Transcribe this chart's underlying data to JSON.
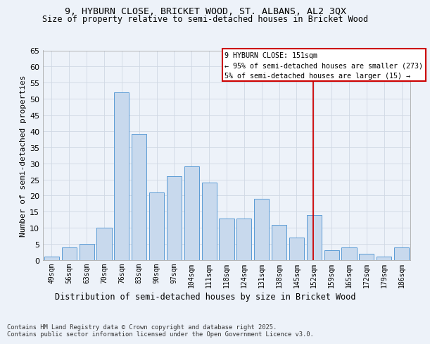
{
  "title_line1": "9, HYBURN CLOSE, BRICKET WOOD, ST. ALBANS, AL2 3QX",
  "title_line2": "Size of property relative to semi-detached houses in Bricket Wood",
  "xlabel": "Distribution of semi-detached houses by size in Bricket Wood",
  "ylabel": "Number of semi-detached properties",
  "categories": [
    "49sqm",
    "56sqm",
    "63sqm",
    "70sqm",
    "76sqm",
    "83sqm",
    "90sqm",
    "97sqm",
    "104sqm",
    "111sqm",
    "118sqm",
    "124sqm",
    "131sqm",
    "138sqm",
    "145sqm",
    "152sqm",
    "159sqm",
    "165sqm",
    "172sqm",
    "179sqm",
    "186sqm"
  ],
  "values": [
    1,
    4,
    5,
    10,
    52,
    39,
    21,
    26,
    29,
    24,
    13,
    13,
    19,
    11,
    7,
    14,
    3,
    4,
    2,
    1,
    4
  ],
  "bar_color": "#c8d9ed",
  "bar_edge_color": "#5b9bd5",
  "grid_color": "#d0d8e4",
  "background_color": "#edf2f9",
  "vline_color": "#cc0000",
  "vline_x": 14.93,
  "annotation_line1": "9 HYBURN CLOSE: 151sqm",
  "annotation_line2": "← 95% of semi-detached houses are smaller (273)",
  "annotation_line3": "5% of semi-detached houses are larger (15) →",
  "annotation_box_color": "#ffffff",
  "annotation_border_color": "#cc0000",
  "footnote_line1": "Contains HM Land Registry data © Crown copyright and database right 2025.",
  "footnote_line2": "Contains public sector information licensed under the Open Government Licence v3.0.",
  "ylim_max": 65,
  "yticks": [
    0,
    5,
    10,
    15,
    20,
    25,
    30,
    35,
    40,
    45,
    50,
    55,
    60,
    65
  ]
}
